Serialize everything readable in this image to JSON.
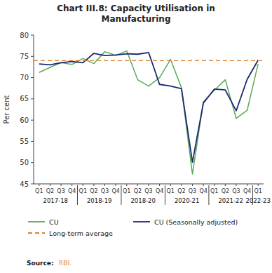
{
  "chart_data": {
    "type": "line",
    "title": "Chart III.8: Capacity Utilisation in\nManufacturing",
    "y_label": "Per cent",
    "categories": [
      "Q1",
      "Q2",
      "Q3",
      "Q4",
      "Q1",
      "Q2",
      "Q3",
      "Q4",
      "Q1",
      "Q2",
      "Q3",
      "Q4",
      "Q1",
      "Q2",
      "Q3",
      "Q4",
      "Q1",
      "Q2",
      "Q3",
      "Q4",
      "Q1"
    ],
    "series": [
      {
        "name": "CU",
        "color": "#5aaa5a",
        "line_style": "solid",
        "values": [
          71.2,
          72.4,
          73.5,
          73.1,
          74.5,
          73.3,
          76.1,
          75.2,
          76.3,
          69.5,
          68.0,
          70.0,
          74.3,
          67.6,
          47.3,
          64.3,
          67.0,
          69.5,
          60.4,
          62.3,
          73.2
        ]
      },
      {
        "name": "CU (Seasonally adjusted)",
        "color": "#1a2a6e",
        "line_style": "solid",
        "values": [
          73.2,
          73.0,
          73.5,
          73.8,
          73.5,
          75.7,
          75.2,
          75.3,
          75.6,
          75.5,
          75.9,
          68.4,
          68.0,
          67.4,
          50.1,
          64.0,
          67.3,
          67.1,
          62.2,
          69.6,
          74.1
        ]
      },
      {
        "name": "Long-term average",
        "type": "hline",
        "color": "#e08030",
        "line_style": "dashed",
        "value": 74.0
      }
    ],
    "annotations": [
      {
        "label": "2017-18",
        "start": 0,
        "end": 3
      },
      {
        "label": "2018-19",
        "start": 4,
        "end": 7
      },
      {
        "label": "2018-20",
        "start": 8,
        "end": 11
      },
      {
        "label": "2020-21",
        "start": 12,
        "end": 15
      },
      {
        "label": "2021-22",
        "start": 16,
        "end": 19
      },
      {
        "label": "2022-23",
        "start": 20,
        "end": 20
      }
    ],
    "source": {
      "label": "Source:",
      "text": "RBI.",
      "color": "#e08030"
    },
    "ylim": [
      45,
      80
    ],
    "yticks": [
      45,
      50,
      55,
      60,
      65,
      70,
      75,
      80
    ],
    "grid": false,
    "legend": "bottom"
  }
}
